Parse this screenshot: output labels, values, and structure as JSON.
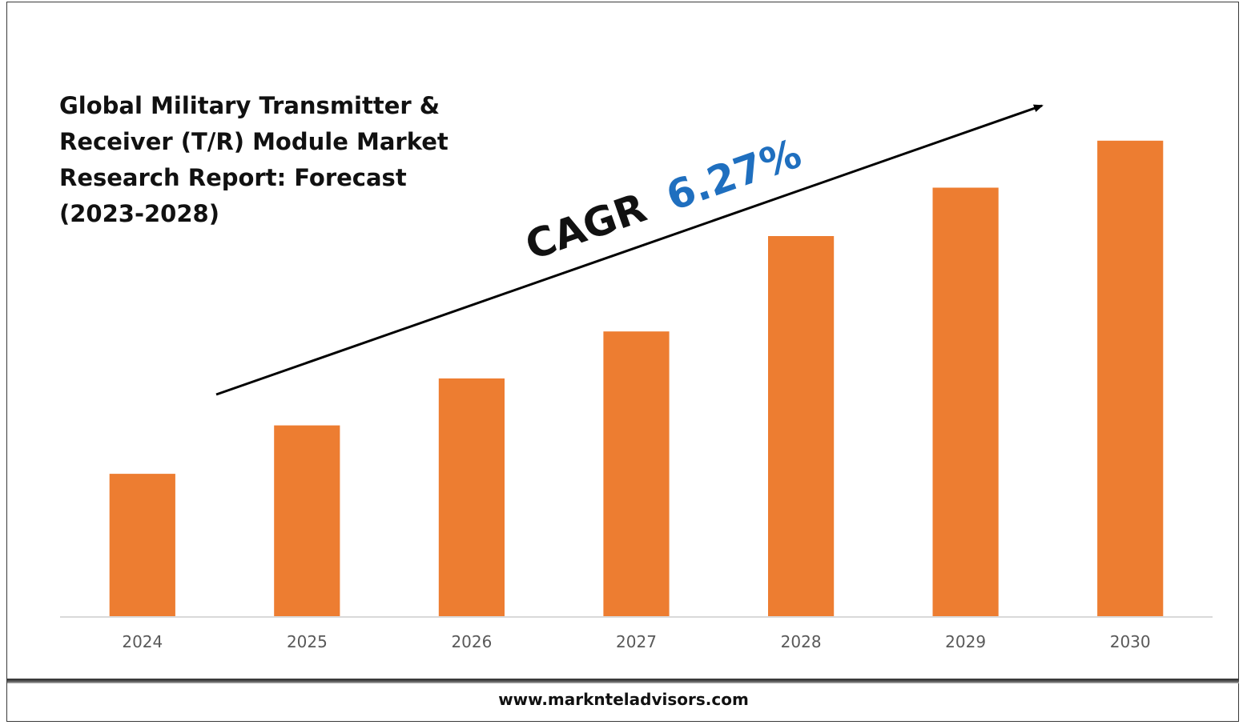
{
  "title_lines": [
    "Global Military Transmitter &",
    "Receiver (T/R) Module Market",
    "Research Report: Forecast",
    "(2023-2028)"
  ],
  "cagr": {
    "label": "CAGR",
    "value": "6.27%",
    "label_color": "#111111",
    "value_color": "#1f6fbf"
  },
  "footer": {
    "url": "www.marknteladvisors.com"
  },
  "colors": {
    "bar": "#ed7d31",
    "axis": "#d9d9d9",
    "tick_text": "#595959",
    "arrow": "#000000"
  },
  "chart_data": {
    "type": "bar",
    "title": "Global Military Transmitter & Receiver (T/R) Module Market Research Report: Forecast (2023-2028)",
    "categories": [
      "2024",
      "2025",
      "2026",
      "2027",
      "2028",
      "2029",
      "2030"
    ],
    "values": [
      1.0,
      1.34,
      1.67,
      2.0,
      2.67,
      3.01,
      3.34
    ],
    "xlabel": "",
    "ylabel": "",
    "ylim": [
      0,
      4.3
    ],
    "grid": false,
    "annotations": [
      "CAGR 6.27%"
    ]
  }
}
